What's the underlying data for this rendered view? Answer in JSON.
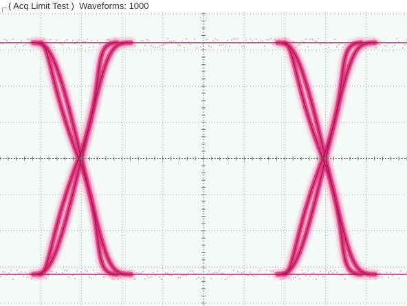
{
  "status": {
    "acq_mode": "Acq Limit Test",
    "waveforms_label": "Waveforms:",
    "waveforms_count": "1000"
  },
  "display": {
    "background_color": "#f4faf8",
    "graticule_color": "#9a9a9a",
    "trace_color": "#e0307a",
    "trace_core_color": "#a01852",
    "trace_halo_color": "#f7a8c8",
    "graticule_divisions": {
      "horizontal": 10,
      "vertical": 8
    },
    "minor_ticks_per_division": 5
  },
  "eye_pattern": {
    "type": "eye-diagram",
    "levels": {
      "high": 0.8,
      "low": -0.8
    },
    "crossing_times": [
      0.2,
      0.8
    ],
    "level_units": "fraction of half-screen",
    "time_units": "fraction of screen width"
  }
}
